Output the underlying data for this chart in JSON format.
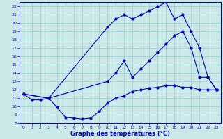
{
  "xlabel": "Graphe des températures (°C)",
  "bg_color": "#cce8e8",
  "line_color": "#0000bb",
  "grid_color": "#99cccc",
  "xlim": [
    -0.5,
    23.5
  ],
  "ylim": [
    8,
    22.5
  ],
  "xticks": [
    0,
    1,
    2,
    3,
    4,
    5,
    6,
    7,
    8,
    9,
    10,
    11,
    12,
    13,
    14,
    15,
    16,
    17,
    18,
    19,
    20,
    21,
    22,
    23
  ],
  "yticks": [
    8,
    9,
    10,
    11,
    12,
    13,
    14,
    15,
    16,
    17,
    18,
    19,
    20,
    21,
    22
  ],
  "line1_x": [
    0,
    1,
    2,
    3,
    4,
    5,
    6,
    7,
    8,
    9,
    10,
    11,
    12,
    13,
    14,
    15,
    16,
    17,
    18,
    19,
    20,
    21,
    22,
    23
  ],
  "line1_y": [
    11.5,
    10.8,
    10.8,
    11.0,
    9.9,
    8.7,
    8.6,
    8.5,
    8.6,
    9.4,
    10.4,
    11.0,
    11.3,
    11.8,
    12.0,
    12.2,
    12.3,
    12.5,
    12.5,
    12.3,
    12.3,
    12.0,
    12.0,
    12.0
  ],
  "line2_x": [
    0,
    3,
    10,
    11,
    12,
    13,
    14,
    15,
    16,
    17,
    18,
    19,
    20,
    21,
    22,
    23
  ],
  "line2_y": [
    11.5,
    11.0,
    13.0,
    14.0,
    15.5,
    13.5,
    14.5,
    15.5,
    16.5,
    17.5,
    18.5,
    19.0,
    17.0,
    13.5,
    13.5,
    12.0
  ],
  "line3_x": [
    0,
    3,
    10,
    11,
    12,
    13,
    14,
    15,
    16,
    17,
    18,
    19,
    20,
    21,
    22,
    23
  ],
  "line3_y": [
    11.5,
    11.0,
    19.5,
    20.5,
    21.0,
    20.5,
    21.0,
    21.5,
    22.0,
    22.5,
    20.5,
    21.0,
    19.0,
    17.0,
    13.5,
    12.0
  ]
}
